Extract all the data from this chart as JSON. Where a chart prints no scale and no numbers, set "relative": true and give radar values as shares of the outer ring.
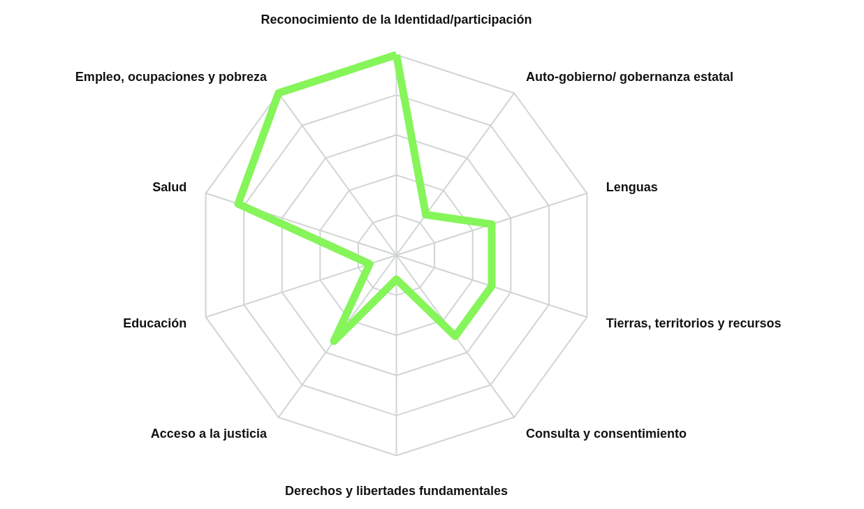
{
  "chart_data": {
    "type": "radar",
    "relative": true,
    "grid": true,
    "categories": [
      "Reconocimiento de la Identidad/participación",
      "Auto-gobierno/ gobernanza estatal",
      "Lenguas",
      "Tierras, territorios y recursos",
      "Consulta y consentimiento",
      "Derechos y libertades fundamentales",
      "Acceso a la justicia",
      "Educación",
      "Salud",
      "Empleo, ocupaciones y pobreza"
    ],
    "series": [
      {
        "color": "#85f55a",
        "values": [
          1.0,
          0.25,
          0.5,
          0.5,
          0.5,
          0.12,
          0.53,
          0.14,
          0.83,
          1.0
        ]
      }
    ]
  }
}
